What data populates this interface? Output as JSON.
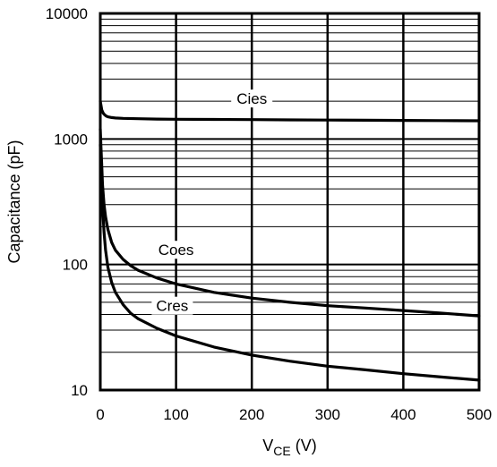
{
  "chart_data": {
    "type": "line",
    "title": "",
    "xlabel": {
      "main": "V",
      "sub": "CE",
      "unit": " (V)"
    },
    "ylabel": "Capacitance (pF)",
    "xlim": [
      0,
      500
    ],
    "ylim": [
      10,
      10000
    ],
    "y_scale": "log",
    "grid": true,
    "x_ticks": [
      0,
      100,
      200,
      300,
      400,
      500
    ],
    "y_ticks": [
      10,
      100,
      1000,
      10000
    ],
    "x_tick_labels": [
      "0",
      "100",
      "200",
      "300",
      "400",
      "500"
    ],
    "y_tick_labels": [
      "10",
      "100",
      "1000",
      "10000"
    ],
    "series": [
      {
        "name": "Cies",
        "color": "#000000",
        "x": [
          0,
          2,
          4,
          6,
          8,
          10,
          15,
          20,
          30,
          50,
          75,
          100,
          150,
          200,
          250,
          300,
          350,
          400,
          450,
          500
        ],
        "y": [
          2000,
          1700,
          1600,
          1550,
          1520,
          1500,
          1480,
          1470,
          1460,
          1450,
          1440,
          1435,
          1430,
          1425,
          1420,
          1415,
          1410,
          1405,
          1400,
          1395
        ]
      },
      {
        "name": "Coes",
        "color": "#000000",
        "x": [
          0,
          1,
          2,
          3,
          5,
          7,
          10,
          15,
          20,
          30,
          40,
          50,
          75,
          100,
          150,
          200,
          250,
          300,
          350,
          400,
          450,
          500
        ],
        "y": [
          1200,
          850,
          600,
          430,
          300,
          240,
          190,
          150,
          130,
          110,
          98,
          90,
          78,
          70,
          60,
          54,
          50,
          47,
          45,
          43,
          41,
          39
        ]
      },
      {
        "name": "Cres",
        "color": "#000000",
        "x": [
          0,
          1,
          2,
          3,
          5,
          7,
          10,
          15,
          20,
          30,
          40,
          50,
          75,
          100,
          150,
          200,
          250,
          300,
          350,
          400,
          450,
          500
        ],
        "y": [
          900,
          600,
          400,
          290,
          180,
          130,
          95,
          72,
          60,
          48,
          41,
          37,
          31,
          27,
          22,
          19,
          17,
          15.5,
          14.5,
          13.5,
          12.7,
          12
        ]
      }
    ],
    "annotations": [
      {
        "text": "Cies",
        "series": "Cies",
        "x": 200,
        "y": 2100
      },
      {
        "text": "Coes",
        "series": "Coes",
        "x": 100,
        "y": 131
      },
      {
        "text": "Cres",
        "series": "Cres",
        "x": 95,
        "y": 47
      }
    ]
  }
}
